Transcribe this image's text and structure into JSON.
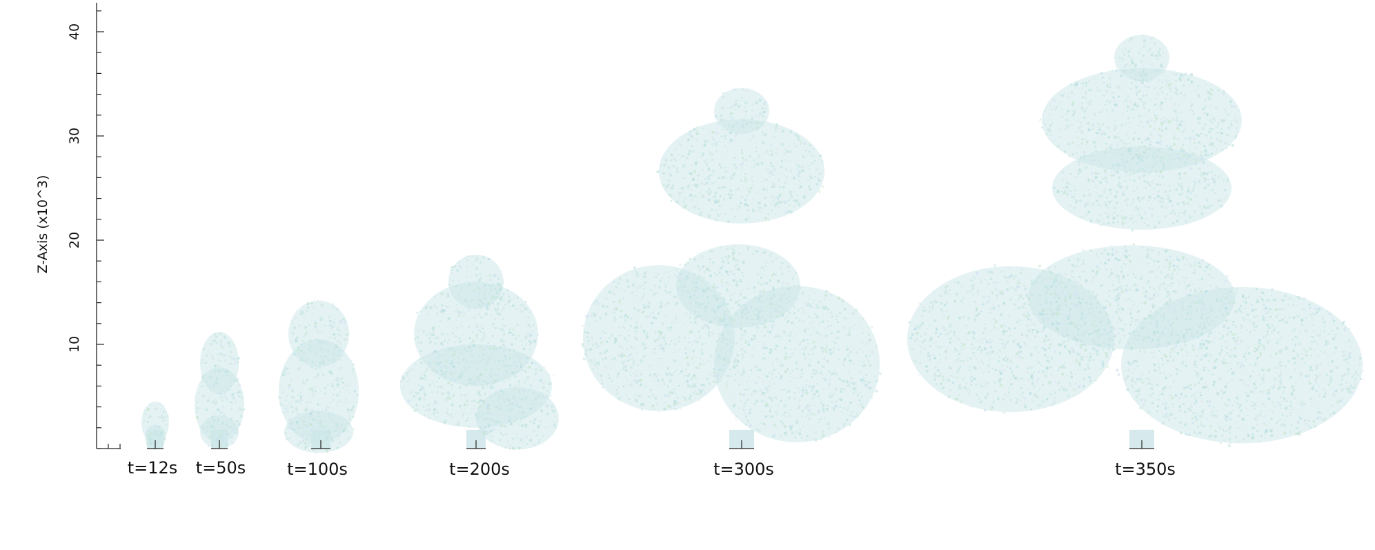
{
  "chart_data": {
    "type": "scatter",
    "description_free": true,
    "ylabel": "Z-Axis (x10^3)",
    "xlabel": "",
    "ylim": [
      0,
      43
    ],
    "yticks_major": [
      10,
      20,
      30,
      40
    ],
    "yticks_minor_step": 2,
    "grid": false,
    "legend": "none",
    "point_colors": [
      "#c5e4e6",
      "#bfe2dc",
      "#d6e3ef",
      "#c7e6cf",
      "#b9dfe3"
    ],
    "plumes": [
      {
        "label": "t=12s",
        "time_s": 12,
        "top_z": 4.7
      },
      {
        "label": "t=50s",
        "time_s": 50,
        "top_z": 11.2
      },
      {
        "label": "t=100s",
        "time_s": 100,
        "top_z": 14.0
      },
      {
        "label": "t=200s",
        "time_s": 200,
        "top_z": 18.5
      },
      {
        "label": "t=300s",
        "time_s": 300,
        "top_z": 34.6
      },
      {
        "label": "t=350s",
        "time_s": 350,
        "top_z": 39.5
      }
    ]
  }
}
